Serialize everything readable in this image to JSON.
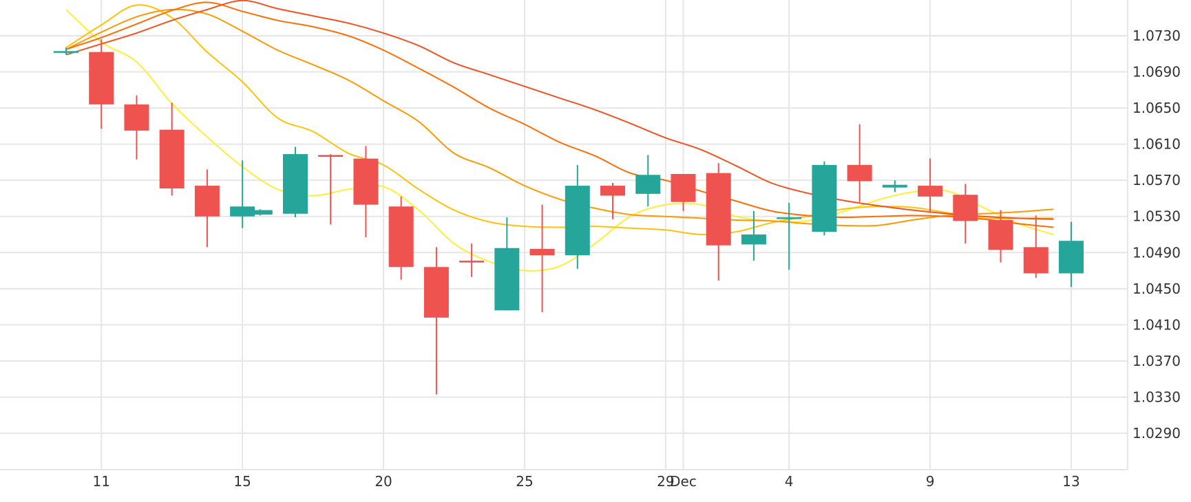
{
  "chart_data": {
    "type": "candlestick",
    "ylim": [
      1.0245,
      1.0775
    ],
    "y_ticks": [
      "1.0290",
      "1.0330",
      "1.0370",
      "1.0410",
      "1.0450",
      "1.0490",
      "1.0530",
      "1.0570",
      "1.0610",
      "1.0650",
      "1.0690",
      "1.0730"
    ],
    "x_ticks": [
      {
        "label": "11",
        "x": 1
      },
      {
        "label": "15",
        "x": 5
      },
      {
        "label": "20",
        "x": 9
      },
      {
        "label": "25",
        "x": 13
      },
      {
        "label": "29",
        "x": 17
      },
      {
        "label": "Dec",
        "x": 17.5
      },
      {
        "label": "4",
        "x": 20.5
      },
      {
        "label": "9",
        "x": 24.5
      },
      {
        "label": "13",
        "x": 28.5
      }
    ],
    "grid": true,
    "colors": {
      "up": "#26a69a",
      "down": "#ef5350",
      "grid": "#e6e6e6",
      "text": "#333333"
    },
    "candles": [
      {
        "x": 0,
        "o": 1.0713,
        "h": 1.0717,
        "l": 1.0709,
        "c": 1.0713
      },
      {
        "x": 1,
        "o": 1.0712,
        "h": 1.0726,
        "l": 1.0627,
        "c": 1.0654
      },
      {
        "x": 2,
        "o": 1.0654,
        "h": 1.0664,
        "l": 1.0593,
        "c": 1.0625
      },
      {
        "x": 3,
        "o": 1.0626,
        "h": 1.0656,
        "l": 1.0553,
        "c": 1.0561
      },
      {
        "x": 4,
        "o": 1.0564,
        "h": 1.0582,
        "l": 1.0496,
        "c": 1.053
      },
      {
        "x": 5,
        "o": 1.053,
        "h": 1.0592,
        "l": 1.0517,
        "c": 1.0541
      },
      {
        "x": 5.5,
        "o": 1.0532,
        "h": 1.0538,
        "l": 1.0531,
        "c": 1.0537
      },
      {
        "x": 6.5,
        "o": 1.0533,
        "h": 1.0607,
        "l": 1.0529,
        "c": 1.0599
      },
      {
        "x": 7.5,
        "o": 1.0598,
        "h": 1.0599,
        "l": 1.0521,
        "c": 1.0596
      },
      {
        "x": 8.5,
        "o": 1.0594,
        "h": 1.0608,
        "l": 1.0507,
        "c": 1.0543
      },
      {
        "x": 9.5,
        "o": 1.0541,
        "h": 1.0552,
        "l": 1.046,
        "c": 1.0474
      },
      {
        "x": 10.5,
        "o": 1.0474,
        "h": 1.0496,
        "l": 1.0333,
        "c": 1.0418
      },
      {
        "x": 11.5,
        "o": 1.0481,
        "h": 1.05,
        "l": 1.0463,
        "c": 1.0479
      },
      {
        "x": 12.5,
        "o": 1.0426,
        "h": 1.0529,
        "l": 1.0426,
        "c": 1.0495
      },
      {
        "x": 13.5,
        "o": 1.0494,
        "h": 1.0543,
        "l": 1.0424,
        "c": 1.0487
      },
      {
        "x": 14.5,
        "o": 1.0487,
        "h": 1.0587,
        "l": 1.0472,
        "c": 1.0564
      },
      {
        "x": 15.5,
        "o": 1.0564,
        "h": 1.0567,
        "l": 1.0527,
        "c": 1.0553
      },
      {
        "x": 16.5,
        "o": 1.0555,
        "h": 1.0598,
        "l": 1.0541,
        "c": 1.0576
      },
      {
        "x": 17.5,
        "o": 1.0577,
        "h": 1.0577,
        "l": 1.0536,
        "c": 1.0546
      },
      {
        "x": 18.5,
        "o": 1.0578,
        "h": 1.0589,
        "l": 1.0459,
        "c": 1.0498
      },
      {
        "x": 19.5,
        "o": 1.0499,
        "h": 1.0536,
        "l": 1.0481,
        "c": 1.051
      },
      {
        "x": 20.5,
        "o": 1.0528,
        "h": 1.0545,
        "l": 1.0471,
        "c": 1.0529
      },
      {
        "x": 21.5,
        "o": 1.0513,
        "h": 1.0591,
        "l": 1.0509,
        "c": 1.0587
      },
      {
        "x": 22.5,
        "o": 1.0587,
        "h": 1.0632,
        "l": 1.0546,
        "c": 1.0569
      },
      {
        "x": 23.5,
        "o": 1.0562,
        "h": 1.057,
        "l": 1.0557,
        "c": 1.0565
      },
      {
        "x": 24.5,
        "o": 1.0564,
        "h": 1.0594,
        "l": 1.0535,
        "c": 1.0552
      },
      {
        "x": 25.5,
        "o": 1.0554,
        "h": 1.0566,
        "l": 1.05,
        "c": 1.0525
      },
      {
        "x": 26.5,
        "o": 1.0526,
        "h": 1.0537,
        "l": 1.0479,
        "c": 1.0493
      },
      {
        "x": 27.5,
        "o": 1.0496,
        "h": 1.0531,
        "l": 1.0462,
        "c": 1.0467
      },
      {
        "x": 28.5,
        "o": 1.0467,
        "h": 1.0524,
        "l": 1.0452,
        "c": 1.0503
      }
    ],
    "moving_averages": [
      {
        "color": "#ffee33",
        "points": [
          [
            0,
            1.0759
          ],
          [
            1,
            1.0723
          ],
          [
            2,
            1.0701
          ],
          [
            3,
            1.0655
          ],
          [
            4,
            1.0618
          ],
          [
            5,
            1.0585
          ],
          [
            6,
            1.056
          ],
          [
            7,
            1.0553
          ],
          [
            8,
            1.056
          ],
          [
            9,
            1.0563
          ],
          [
            10,
            1.0537
          ],
          [
            11,
            1.05
          ],
          [
            12,
            1.048
          ],
          [
            13,
            1.047
          ],
          [
            14,
            1.0475
          ],
          [
            15,
            1.05
          ],
          [
            16,
            1.053
          ],
          [
            17,
            1.0543
          ],
          [
            18,
            1.0543
          ],
          [
            19,
            1.053
          ],
          [
            20,
            1.0525
          ],
          [
            21,
            1.0525
          ],
          [
            22,
            1.0535
          ],
          [
            23,
            1.0548
          ],
          [
            24,
            1.0557
          ],
          [
            25,
            1.0558
          ],
          [
            26,
            1.054
          ],
          [
            27,
            1.0522
          ],
          [
            28,
            1.051
          ]
        ]
      },
      {
        "color": "#ffc107",
        "points": [
          [
            0,
            1.0717
          ],
          [
            1,
            1.0742
          ],
          [
            2,
            1.0764
          ],
          [
            3,
            1.075
          ],
          [
            4,
            1.0712
          ],
          [
            5,
            1.0679
          ],
          [
            6,
            1.0639
          ],
          [
            7,
            1.0624
          ],
          [
            8,
            1.06
          ],
          [
            9,
            1.0587
          ],
          [
            10,
            1.056
          ],
          [
            11,
            1.0537
          ],
          [
            12,
            1.0524
          ],
          [
            13,
            1.0519
          ],
          [
            14,
            1.0518
          ],
          [
            15,
            1.0519
          ],
          [
            16,
            1.0517
          ],
          [
            17,
            1.0515
          ],
          [
            18,
            1.051
          ],
          [
            19,
            1.0513
          ],
          [
            20,
            1.0523
          ],
          [
            21,
            1.053
          ],
          [
            22,
            1.0538
          ],
          [
            23,
            1.0541
          ],
          [
            24,
            1.054
          ],
          [
            25,
            1.0534
          ],
          [
            26,
            1.0528
          ],
          [
            27,
            1.0528
          ],
          [
            28,
            1.0528
          ]
        ]
      },
      {
        "color": "#ff9800",
        "points": [
          [
            0,
            1.0715
          ],
          [
            1,
            1.0734
          ],
          [
            2,
            1.0751
          ],
          [
            3,
            1.0759
          ],
          [
            4,
            1.0754
          ],
          [
            5,
            1.0735
          ],
          [
            6,
            1.0714
          ],
          [
            7,
            1.0698
          ],
          [
            8,
            1.0681
          ],
          [
            9,
            1.0658
          ],
          [
            10,
            1.0635
          ],
          [
            11,
            1.06
          ],
          [
            12,
            1.0584
          ],
          [
            13,
            1.0564
          ],
          [
            14,
            1.0549
          ],
          [
            15,
            1.0539
          ],
          [
            16,
            1.0532
          ],
          [
            17,
            1.053
          ],
          [
            18,
            1.0528
          ],
          [
            19,
            1.0526
          ],
          [
            20,
            1.0525
          ],
          [
            21,
            1.0522
          ],
          [
            22,
            1.052
          ],
          [
            23,
            1.052
          ],
          [
            24,
            1.0526
          ],
          [
            25,
            1.0531
          ],
          [
            26,
            1.0533
          ],
          [
            27,
            1.0535
          ],
          [
            28,
            1.0538
          ]
        ]
      },
      {
        "color": "#ff6d00",
        "points": [
          [
            0,
            1.0715
          ],
          [
            1,
            1.0728
          ],
          [
            2,
            1.0743
          ],
          [
            3,
            1.0758
          ],
          [
            4,
            1.0767
          ],
          [
            5,
            1.0757
          ],
          [
            6,
            1.0747
          ],
          [
            7,
            1.074
          ],
          [
            8,
            1.073
          ],
          [
            9,
            1.0714
          ],
          [
            10,
            1.0694
          ],
          [
            11,
            1.0673
          ],
          [
            12,
            1.065
          ],
          [
            13,
            1.0632
          ],
          [
            14,
            1.0612
          ],
          [
            15,
            1.0597
          ],
          [
            16,
            1.0578
          ],
          [
            17,
            1.057
          ],
          [
            18,
            1.0558
          ],
          [
            19,
            1.0547
          ],
          [
            20,
            1.0536
          ],
          [
            21,
            1.0531
          ],
          [
            22,
            1.0529
          ],
          [
            23,
            1.053
          ],
          [
            24,
            1.0531
          ],
          [
            25,
            1.053
          ],
          [
            26,
            1.0527
          ],
          [
            27,
            1.0522
          ],
          [
            28,
            1.0518
          ]
        ]
      },
      {
        "color": "#f4511e",
        "points": [
          [
            0,
            1.0709
          ],
          [
            1,
            1.0721
          ],
          [
            2,
            1.0733
          ],
          [
            3,
            1.0747
          ],
          [
            4,
            1.0759
          ],
          [
            5,
            1.0769
          ],
          [
            6,
            1.076
          ],
          [
            7,
            1.0752
          ],
          [
            8,
            1.0744
          ],
          [
            9,
            1.0733
          ],
          [
            10,
            1.0719
          ],
          [
            11,
            1.07
          ],
          [
            12,
            1.0687
          ],
          [
            13,
            1.0674
          ],
          [
            14,
            1.0661
          ],
          [
            15,
            1.0648
          ],
          [
            16,
            1.0633
          ],
          [
            17,
            1.0617
          ],
          [
            18,
            1.0604
          ],
          [
            19,
            1.0586
          ],
          [
            20,
            1.0567
          ],
          [
            21,
            1.0556
          ],
          [
            22,
            1.0548
          ],
          [
            23,
            1.0542
          ],
          [
            24,
            1.0537
          ],
          [
            25,
            1.0533
          ],
          [
            26,
            1.053
          ],
          [
            27,
            1.0528
          ],
          [
            28,
            1.0527
          ]
        ]
      }
    ]
  }
}
